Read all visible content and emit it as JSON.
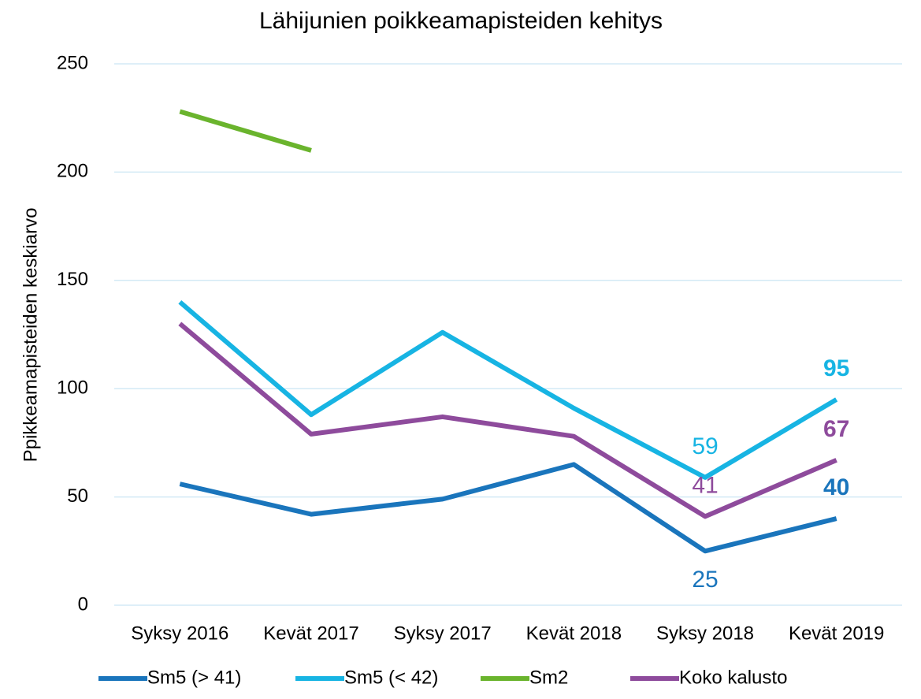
{
  "chart_data": {
    "type": "line",
    "title": "Lähijunien poikkeamapisteiden kehitys",
    "y_label": "Ppikkeamapisteiden keskiarvo",
    "categories": [
      "Syksy 2016",
      "Kevät 2017",
      "Syksy 2017",
      "Kevät 2018",
      "Syksy 2018",
      "Kevät 2019"
    ],
    "series": [
      {
        "name": "Sm5 (> 41)",
        "color": "#1a75bc",
        "values": [
          56,
          42,
          49,
          65,
          25,
          40
        ],
        "value_labels": [
          null,
          null,
          null,
          null,
          "25",
          "40"
        ]
      },
      {
        "name": "Sm5 (< 42)",
        "color": "#17b4e3",
        "values": [
          140,
          88,
          126,
          91,
          59,
          95
        ],
        "value_labels": [
          null,
          null,
          null,
          null,
          "59",
          "95"
        ]
      },
      {
        "name": "Sm2",
        "color": "#6ab42d",
        "values": [
          228,
          210,
          null,
          null,
          null,
          null
        ]
      },
      {
        "name": "Koko kalusto",
        "color": "#8e4b9c",
        "values": [
          130,
          79,
          87,
          78,
          41,
          67
        ],
        "value_labels": [
          null,
          null,
          null,
          null,
          "41",
          "67"
        ]
      }
    ],
    "ylim": [
      0,
      250
    ],
    "yticks": [
      0,
      50,
      100,
      150,
      200,
      250
    ],
    "grid": true,
    "legend": "bottom"
  }
}
